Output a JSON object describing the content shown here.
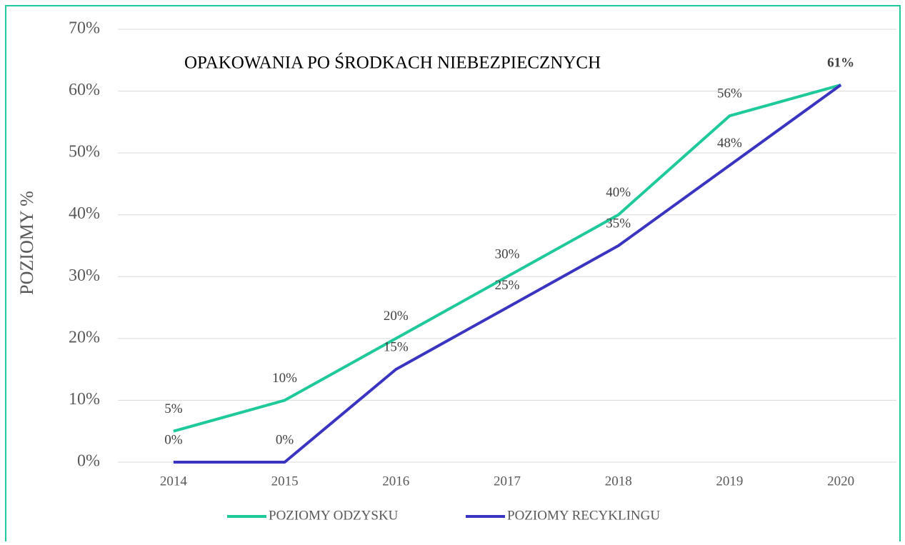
{
  "chart_data": {
    "type": "line",
    "title": "OPAKOWANIA PO ŚRODKACH NIEBEZPIECZNYCH",
    "y_label": "POZIOMY %",
    "categories": [
      "2014",
      "2015",
      "2016",
      "2017",
      "2018",
      "2019",
      "2020"
    ],
    "series": [
      {
        "name": "POZIOMY ODZYSKU",
        "color": "#1fc99a",
        "values": [
          5,
          10,
          20,
          30,
          40,
          56,
          61
        ],
        "value_labels": [
          "5%",
          "10%",
          "20%",
          "30%",
          "40%",
          "56%",
          "61%"
        ]
      },
      {
        "name": "POZIOMY RECYKLINGU",
        "color": "#3a35c0",
        "values": [
          0,
          0,
          15,
          25,
          35,
          48,
          61
        ],
        "value_labels": [
          "0%",
          "0%",
          "15%",
          "25%",
          "35%",
          "48%",
          null
        ]
      }
    ],
    "ylim": [
      0,
      70
    ],
    "yticks": [
      {
        "value": 0,
        "label": "0%"
      },
      {
        "value": 10,
        "label": "10%"
      },
      {
        "value": 20,
        "label": "20%"
      },
      {
        "value": 30,
        "label": "30%"
      },
      {
        "value": 40,
        "label": "40%"
      },
      {
        "value": 50,
        "label": "50%"
      },
      {
        "value": 60,
        "label": "60%"
      },
      {
        "value": 70,
        "label": "70%"
      }
    ],
    "grid": true,
    "legend": "bottom"
  }
}
